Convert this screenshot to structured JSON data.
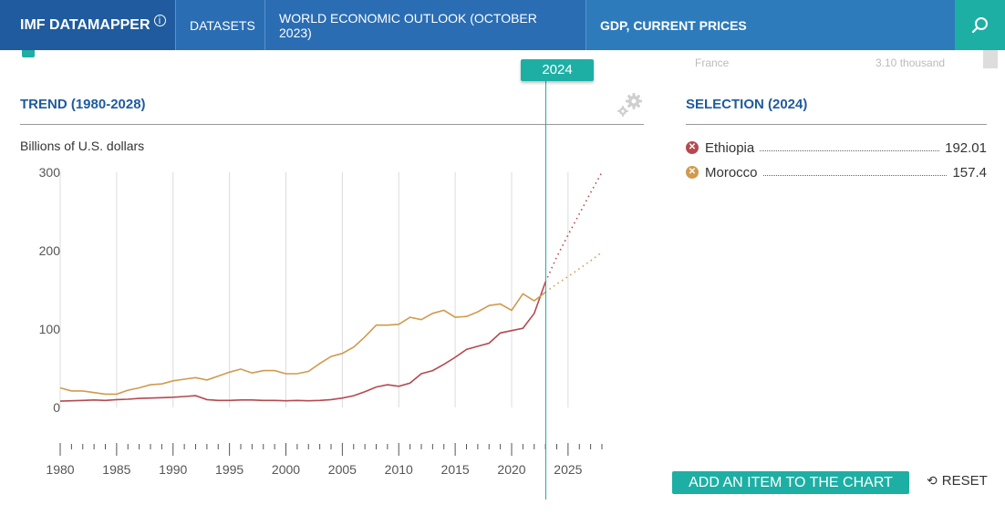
{
  "nav": {
    "brand": "IMF DATAMAPPER",
    "brand_info": "i",
    "datasets": "DATASETS",
    "dataset_name": "WORLD ECONOMIC OUTLOOK (OCTOBER 2023)",
    "indicator": "GDP, CURRENT PRICES",
    "search_icon": "search-icon"
  },
  "timeline": {
    "selected_year": "2024",
    "ghost_left": "France",
    "ghost_right": "3.10 thousand"
  },
  "trend": {
    "title": "TREND (1980-2028)",
    "units": "Billions of U.S. dollars"
  },
  "selection": {
    "title": "SELECTION (2024)",
    "items": [
      {
        "name": "Ethiopia",
        "value": "192.01",
        "color": "#b5494f"
      },
      {
        "name": "Morocco",
        "value": "157.4",
        "color": "#d09a4f"
      }
    ]
  },
  "actions": {
    "add_item": "ADD AN ITEM TO THE CHART",
    "reset": "RESET"
  },
  "colors": {
    "brand_blue": "#1f5b9e",
    "nav_blue": "#2a6db3",
    "teal": "#1dafa4"
  },
  "chart_data": {
    "type": "line",
    "title": "",
    "xlabel": "",
    "ylabel": "Billions of U.S. dollars",
    "xlim": [
      1980,
      2028
    ],
    "ylim": [
      0,
      300
    ],
    "x_ticks": [
      1980,
      1985,
      1990,
      1995,
      2000,
      2005,
      2010,
      2015,
      2020,
      2025
    ],
    "y_ticks": [
      0,
      100,
      200,
      300
    ],
    "grid": true,
    "projection_start": 2023,
    "selected_year": 2024,
    "series": [
      {
        "name": "Ethiopia",
        "color": "#b5494f",
        "x": [
          1980,
          1981,
          1982,
          1983,
          1984,
          1985,
          1986,
          1987,
          1988,
          1989,
          1990,
          1991,
          1992,
          1993,
          1994,
          1995,
          1996,
          1997,
          1998,
          1999,
          2000,
          2001,
          2002,
          2003,
          2004,
          2005,
          2006,
          2007,
          2008,
          2009,
          2010,
          2011,
          2012,
          2013,
          2014,
          2015,
          2016,
          2017,
          2018,
          2019,
          2020,
          2021,
          2022,
          2023,
          2024,
          2025,
          2026,
          2027,
          2028
        ],
        "values": [
          8,
          8.5,
          9,
          9.5,
          9,
          10,
          10.5,
          11.5,
          12,
          12.5,
          13,
          14,
          15,
          10,
          9,
          9,
          9.5,
          9.5,
          9,
          9,
          8.5,
          9,
          8.5,
          9,
          10,
          12,
          15,
          20,
          26,
          29,
          27,
          31,
          43,
          47,
          55,
          64,
          74,
          78,
          82,
          95,
          98,
          101,
          120,
          160,
          192,
          220,
          247,
          274,
          300
        ]
      },
      {
        "name": "Morocco",
        "color": "#d09a4f",
        "x": [
          1980,
          1981,
          1982,
          1983,
          1984,
          1985,
          1986,
          1987,
          1988,
          1989,
          1990,
          1991,
          1992,
          1993,
          1994,
          1995,
          1996,
          1997,
          1998,
          1999,
          2000,
          2001,
          2002,
          2003,
          2004,
          2005,
          2006,
          2007,
          2008,
          2009,
          2010,
          2011,
          2012,
          2013,
          2014,
          2015,
          2016,
          2017,
          2018,
          2019,
          2020,
          2021,
          2022,
          2023,
          2024,
          2025,
          2026,
          2027,
          2028
        ],
        "values": [
          25,
          21,
          21,
          19,
          17,
          17,
          22,
          25,
          29,
          30,
          34,
          36,
          38,
          35,
          40,
          45,
          49,
          44,
          47,
          47,
          43,
          43,
          46,
          56,
          65,
          69,
          77,
          90,
          105,
          105,
          106,
          115,
          112,
          120,
          124,
          115,
          116,
          122,
          130,
          132,
          124,
          145,
          136,
          147,
          157.4,
          167,
          177,
          187,
          198
        ]
      }
    ]
  }
}
